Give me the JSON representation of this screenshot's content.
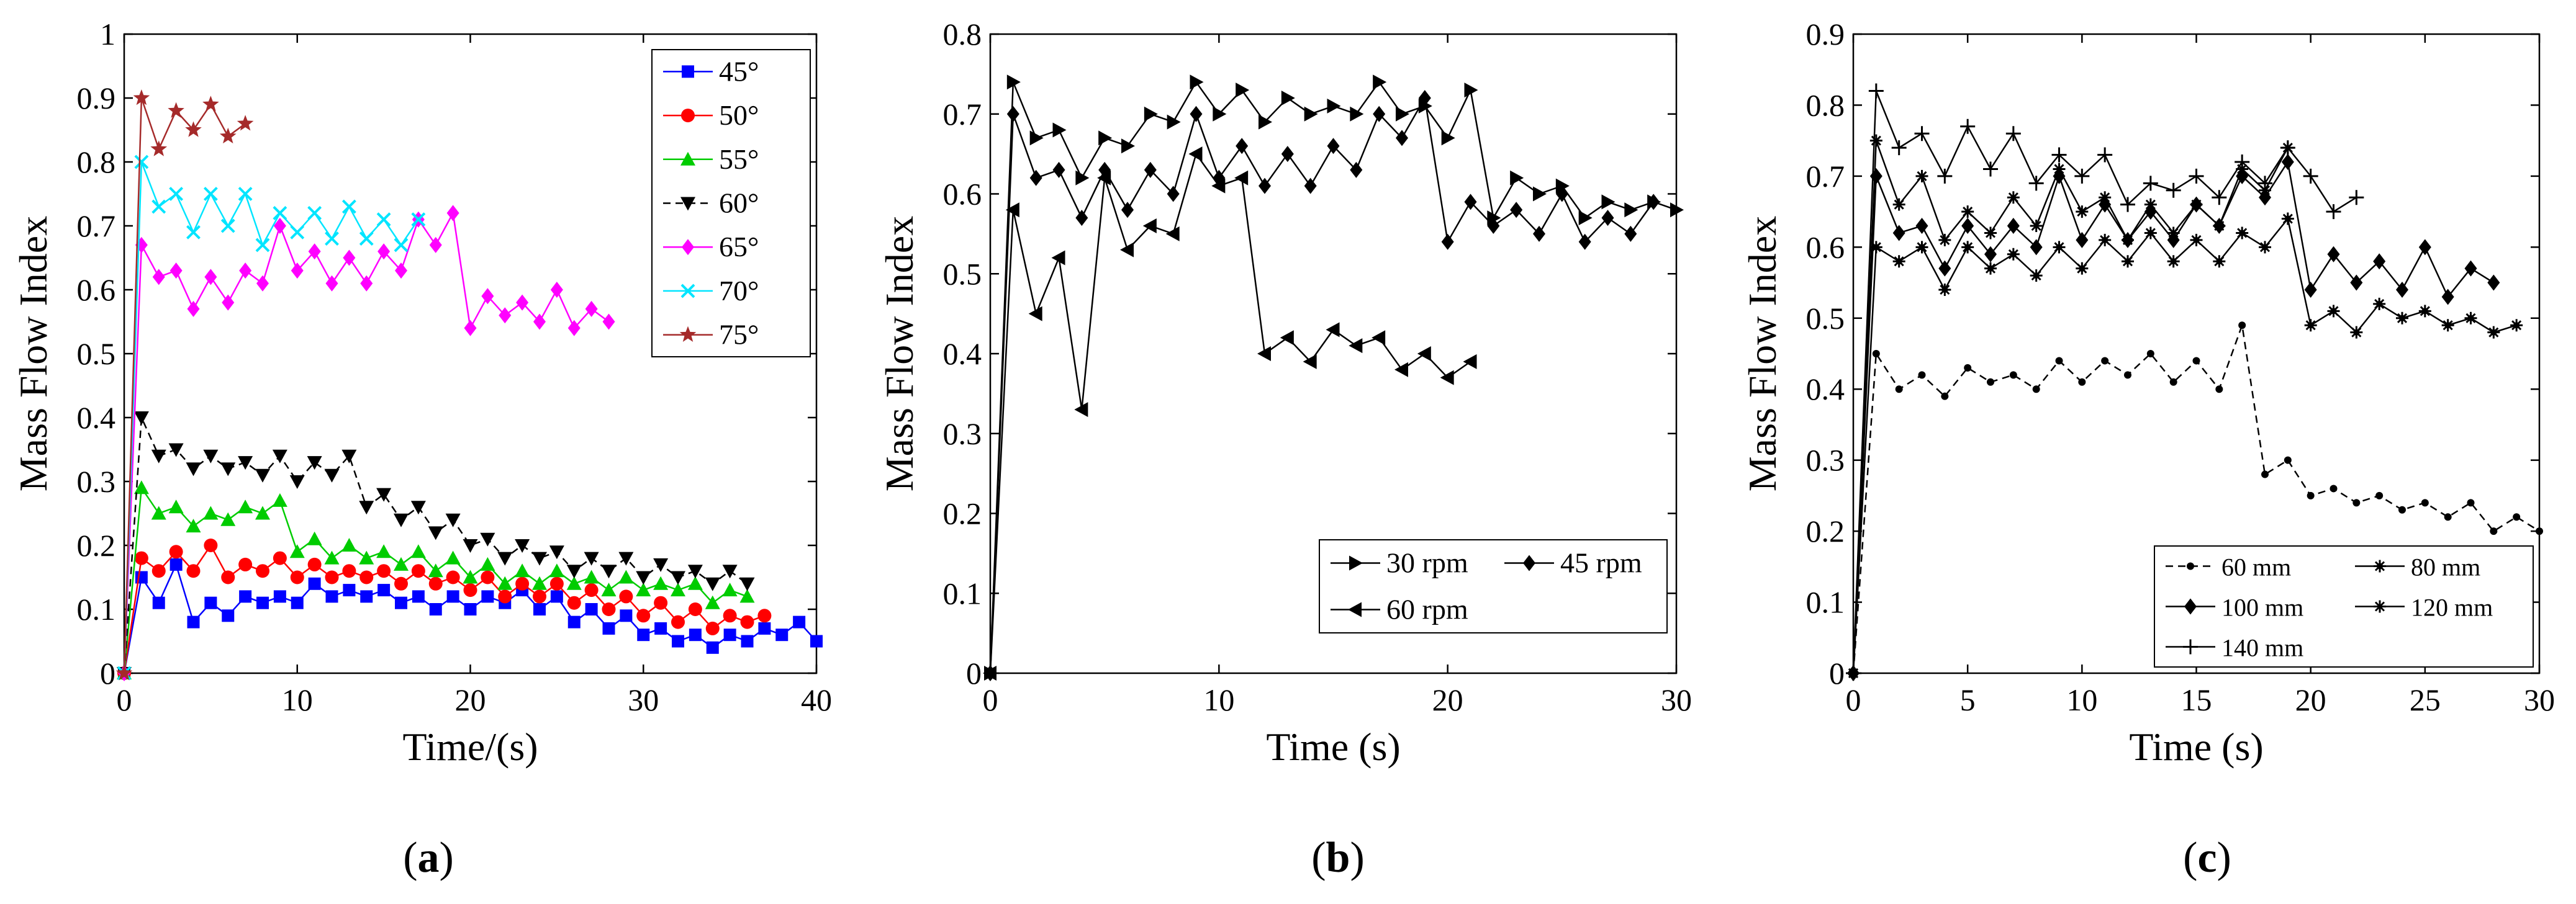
{
  "chart_data": [
    {
      "type": "line",
      "panel_label": "a",
      "xlabel": "Time/(s)",
      "ylabel": "Mass Flow Index",
      "xlim": [
        0,
        40
      ],
      "ylim": [
        0,
        1
      ],
      "xticks": [
        0,
        10,
        20,
        30,
        40
      ],
      "yticks": [
        0,
        0.1,
        0.2,
        0.3,
        0.4,
        0.5,
        0.6,
        0.7,
        0.8,
        0.9,
        1
      ],
      "ytick_labels": [
        "0",
        "0.1",
        "0.2",
        "0.3",
        "0.4",
        "0.5",
        "0.6",
        "0.7",
        "0.8",
        "0.9",
        "1"
      ],
      "legend_position": "top-right",
      "series": [
        {
          "name": "45°",
          "color": "#0000ff",
          "marker": "square",
          "dash": "solid",
          "x": [
            0,
            1,
            2,
            3,
            4,
            5,
            6,
            7,
            8,
            9,
            10,
            11,
            12,
            13,
            14,
            15,
            16,
            17,
            18,
            19,
            20,
            21,
            22,
            23,
            24,
            25,
            26,
            27,
            28,
            29,
            30,
            31,
            32,
            33,
            34,
            35,
            36,
            37,
            38,
            39,
            40
          ],
          "values": [
            0,
            0.15,
            0.11,
            0.17,
            0.08,
            0.11,
            0.09,
            0.12,
            0.11,
            0.12,
            0.11,
            0.14,
            0.12,
            0.13,
            0.12,
            0.13,
            0.11,
            0.12,
            0.1,
            0.12,
            0.1,
            0.12,
            0.11,
            0.13,
            0.1,
            0.12,
            0.08,
            0.1,
            0.07,
            0.09,
            0.06,
            0.07,
            0.05,
            0.06,
            0.04,
            0.06,
            0.05,
            0.07,
            0.06,
            0.08,
            0.05
          ]
        },
        {
          "name": "50°",
          "color": "#ff0000",
          "marker": "circle",
          "dash": "solid",
          "x": [
            0,
            1,
            2,
            3,
            4,
            5,
            6,
            7,
            8,
            9,
            10,
            11,
            12,
            13,
            14,
            15,
            16,
            17,
            18,
            19,
            20,
            21,
            22,
            23,
            24,
            25,
            26,
            27,
            28,
            29,
            30,
            31,
            32,
            33,
            34,
            35,
            36,
            37
          ],
          "values": [
            0,
            0.18,
            0.16,
            0.19,
            0.16,
            0.2,
            0.15,
            0.17,
            0.16,
            0.18,
            0.15,
            0.17,
            0.15,
            0.16,
            0.15,
            0.16,
            0.14,
            0.16,
            0.14,
            0.15,
            0.13,
            0.15,
            0.12,
            0.14,
            0.12,
            0.14,
            0.11,
            0.13,
            0.1,
            0.12,
            0.09,
            0.11,
            0.08,
            0.1,
            0.07,
            0.09,
            0.08,
            0.09
          ]
        },
        {
          "name": "55°",
          "color": "#00cc00",
          "marker": "triangle",
          "dash": "solid",
          "x": [
            0,
            1,
            2,
            3,
            4,
            5,
            6,
            7,
            8,
            9,
            10,
            11,
            12,
            13,
            14,
            15,
            16,
            17,
            18,
            19,
            20,
            21,
            22,
            23,
            24,
            25,
            26,
            27,
            28,
            29,
            30,
            31,
            32,
            33,
            34,
            35,
            36
          ],
          "values": [
            0,
            0.29,
            0.25,
            0.26,
            0.23,
            0.25,
            0.24,
            0.26,
            0.25,
            0.27,
            0.19,
            0.21,
            0.18,
            0.2,
            0.18,
            0.19,
            0.17,
            0.19,
            0.16,
            0.18,
            0.15,
            0.17,
            0.14,
            0.16,
            0.14,
            0.16,
            0.14,
            0.15,
            0.13,
            0.15,
            0.13,
            0.14,
            0.13,
            0.14,
            0.11,
            0.13,
            0.12
          ]
        },
        {
          "name": "60°",
          "color": "#000000",
          "marker": "triangle-down",
          "dash": "dashed",
          "x": [
            0,
            1,
            2,
            3,
            4,
            5,
            6,
            7,
            8,
            9,
            10,
            11,
            12,
            13,
            14,
            15,
            16,
            17,
            18,
            19,
            20,
            21,
            22,
            23,
            24,
            25,
            26,
            27,
            28,
            29,
            30,
            31,
            32,
            33,
            34,
            35,
            36
          ],
          "values": [
            0,
            0.4,
            0.34,
            0.35,
            0.32,
            0.34,
            0.32,
            0.33,
            0.31,
            0.34,
            0.3,
            0.33,
            0.31,
            0.34,
            0.26,
            0.28,
            0.24,
            0.26,
            0.22,
            0.24,
            0.2,
            0.21,
            0.18,
            0.2,
            0.18,
            0.19,
            0.16,
            0.18,
            0.16,
            0.18,
            0.15,
            0.17,
            0.15,
            0.16,
            0.14,
            0.16,
            0.14
          ]
        },
        {
          "name": "65°",
          "color": "#ff00ff",
          "marker": "diamond",
          "dash": "solid",
          "x": [
            0,
            1,
            2,
            3,
            4,
            5,
            6,
            7,
            8,
            9,
            10,
            11,
            12,
            13,
            14,
            15,
            16,
            17,
            18,
            19,
            20,
            21,
            22,
            23,
            24,
            25,
            26,
            27,
            28
          ],
          "values": [
            0,
            0.67,
            0.62,
            0.63,
            0.57,
            0.62,
            0.58,
            0.63,
            0.61,
            0.7,
            0.63,
            0.66,
            0.61,
            0.65,
            0.61,
            0.66,
            0.63,
            0.71,
            0.67,
            0.72,
            0.54,
            0.59,
            0.56,
            0.58,
            0.55,
            0.6,
            0.54,
            0.57,
            0.55
          ]
        },
        {
          "name": "70°",
          "color": "#00e5ff",
          "marker": "x",
          "dash": "solid",
          "x": [
            0,
            1,
            2,
            3,
            4,
            5,
            6,
            7,
            8,
            9,
            10,
            11,
            12,
            13,
            14,
            15,
            16,
            17
          ],
          "values": [
            0,
            0.8,
            0.73,
            0.75,
            0.69,
            0.75,
            0.7,
            0.75,
            0.67,
            0.72,
            0.69,
            0.72,
            0.68,
            0.73,
            0.68,
            0.71,
            0.67,
            0.71
          ]
        },
        {
          "name": "75°",
          "color": "#a52a2a",
          "marker": "star",
          "dash": "solid",
          "x": [
            0,
            1,
            2,
            3,
            4,
            5,
            6,
            7
          ],
          "values": [
            0,
            0.9,
            0.82,
            0.88,
            0.85,
            0.89,
            0.84,
            0.86
          ]
        }
      ]
    },
    {
      "type": "line",
      "panel_label": "b",
      "xlabel": "Time (s)",
      "ylabel": "Mass Flow Index",
      "xlim": [
        0,
        30
      ],
      "ylim": [
        0,
        0.8
      ],
      "xticks": [
        0,
        10,
        20,
        30
      ],
      "yticks": [
        0,
        0.1,
        0.2,
        0.3,
        0.4,
        0.5,
        0.6,
        0.7,
        0.8
      ],
      "ytick_labels": [
        "0",
        "0.1",
        "0.2",
        "0.3",
        "0.4",
        "0.5",
        "0.6",
        "0.7",
        "0.8"
      ],
      "legend_position": "bottom-right",
      "series": [
        {
          "name": "30 rpm",
          "color": "#000000",
          "marker": "triangle-right",
          "dash": "solid",
          "x": [
            0,
            1,
            2,
            3,
            4,
            5,
            6,
            7,
            8,
            9,
            10,
            11,
            12,
            13,
            14,
            15,
            16,
            17,
            18,
            19,
            20,
            21,
            22,
            23,
            24,
            25,
            26,
            27,
            28,
            29,
            30
          ],
          "values": [
            0,
            0.74,
            0.67,
            0.68,
            0.62,
            0.67,
            0.66,
            0.7,
            0.69,
            0.74,
            0.7,
            0.73,
            0.69,
            0.72,
            0.7,
            0.71,
            0.7,
            0.74,
            0.7,
            0.71,
            0.67,
            0.73,
            0.57,
            0.62,
            0.6,
            0.61,
            0.57,
            0.59,
            0.58,
            0.59,
            0.58
          ]
        },
        {
          "name": "45 rpm",
          "color": "#000000",
          "marker": "diamond",
          "dash": "solid",
          "x": [
            0,
            1,
            2,
            3,
            4,
            5,
            6,
            7,
            8,
            9,
            10,
            11,
            12,
            13,
            14,
            15,
            16,
            17,
            18,
            19,
            20,
            21,
            22,
            23,
            24,
            25,
            26,
            27,
            28,
            29
          ],
          "values": [
            0,
            0.7,
            0.62,
            0.63,
            0.57,
            0.63,
            0.58,
            0.63,
            0.6,
            0.7,
            0.62,
            0.66,
            0.61,
            0.65,
            0.61,
            0.66,
            0.63,
            0.7,
            0.67,
            0.72,
            0.54,
            0.59,
            0.56,
            0.58,
            0.55,
            0.6,
            0.54,
            0.57,
            0.55,
            0.59
          ]
        },
        {
          "name": "60 rpm",
          "color": "#000000",
          "marker": "triangle-left",
          "dash": "solid",
          "x": [
            0,
            1,
            2,
            3,
            4,
            5,
            6,
            7,
            8,
            9,
            10,
            11,
            12,
            13,
            14,
            15,
            16,
            17,
            18,
            19,
            20,
            21
          ],
          "values": [
            0,
            0.58,
            0.45,
            0.52,
            0.33,
            0.62,
            0.53,
            0.56,
            0.55,
            0.65,
            0.61,
            0.62,
            0.4,
            0.42,
            0.39,
            0.43,
            0.41,
            0.42,
            0.38,
            0.4,
            0.37,
            0.39
          ]
        }
      ]
    },
    {
      "type": "line",
      "panel_label": "c",
      "xlabel": "Time (s)",
      "ylabel": "Mass Flow Index",
      "xlim": [
        0,
        30
      ],
      "ylim": [
        0,
        0.9
      ],
      "xticks": [
        0,
        5,
        10,
        15,
        20,
        25,
        30
      ],
      "yticks": [
        0,
        0.1,
        0.2,
        0.3,
        0.4,
        0.5,
        0.6,
        0.7,
        0.8,
        0.9
      ],
      "ytick_labels": [
        "0",
        "0.1",
        "0.2",
        "0.3",
        "0.4",
        "0.5",
        "0.6",
        "0.7",
        "0.8",
        "0.9"
      ],
      "legend_position": "bottom-right",
      "series": [
        {
          "name": "60 mm",
          "color": "#000000",
          "marker": "dot",
          "dash": "dashed",
          "x": [
            0,
            1,
            2,
            3,
            4,
            5,
            6,
            7,
            8,
            9,
            10,
            11,
            12,
            13,
            14,
            15,
            16,
            17,
            18,
            19,
            20,
            21,
            22,
            23,
            24,
            25,
            26,
            27,
            28,
            29,
            30
          ],
          "values": [
            0,
            0.45,
            0.4,
            0.42,
            0.39,
            0.43,
            0.41,
            0.42,
            0.4,
            0.44,
            0.41,
            0.44,
            0.42,
            0.45,
            0.41,
            0.44,
            0.4,
            0.49,
            0.28,
            0.3,
            0.25,
            0.26,
            0.24,
            0.25,
            0.23,
            0.24,
            0.22,
            0.24,
            0.2,
            0.22,
            0.2
          ]
        },
        {
          "name": "80 mm",
          "color": "#000000",
          "marker": "asterisk-dot",
          "dash": "solid",
          "x": [
            0,
            1,
            2,
            3,
            4,
            5,
            6,
            7,
            8,
            9,
            10,
            11,
            12,
            13,
            14,
            15,
            16,
            17,
            18,
            19,
            20,
            21,
            22,
            23,
            24,
            25,
            26,
            27,
            28,
            29
          ],
          "values": [
            0,
            0.6,
            0.58,
            0.6,
            0.54,
            0.6,
            0.57,
            0.59,
            0.56,
            0.6,
            0.57,
            0.61,
            0.58,
            0.62,
            0.58,
            0.61,
            0.58,
            0.62,
            0.6,
            0.64,
            0.49,
            0.51,
            0.48,
            0.52,
            0.5,
            0.51,
            0.49,
            0.5,
            0.48,
            0.49
          ]
        },
        {
          "name": "100 mm",
          "color": "#000000",
          "marker": "diamond",
          "dash": "solid",
          "x": [
            0,
            1,
            2,
            3,
            4,
            5,
            6,
            7,
            8,
            9,
            10,
            11,
            12,
            13,
            14,
            15,
            16,
            17,
            18,
            19,
            20,
            21,
            22,
            23,
            24,
            25,
            26,
            27,
            28
          ],
          "values": [
            0,
            0.7,
            0.62,
            0.63,
            0.57,
            0.63,
            0.59,
            0.63,
            0.6,
            0.7,
            0.61,
            0.66,
            0.61,
            0.65,
            0.61,
            0.66,
            0.63,
            0.7,
            0.67,
            0.72,
            0.54,
            0.59,
            0.55,
            0.58,
            0.54,
            0.6,
            0.53,
            0.57,
            0.55
          ]
        },
        {
          "name": "120 mm",
          "color": "#000000",
          "marker": "asterisk",
          "dash": "solid",
          "x": [
            0,
            1,
            2,
            3,
            4,
            5,
            6,
            7,
            8,
            9,
            10,
            11,
            12,
            13,
            14,
            15,
            16,
            17,
            18,
            19
          ],
          "values": [
            0,
            0.75,
            0.66,
            0.7,
            0.61,
            0.65,
            0.62,
            0.67,
            0.63,
            0.71,
            0.65,
            0.67,
            0.61,
            0.66,
            0.62,
            0.66,
            0.63,
            0.71,
            0.68,
            0.74
          ]
        },
        {
          "name": "140 mm",
          "color": "#000000",
          "marker": "plus",
          "dash": "solid",
          "x": [
            0,
            1,
            2,
            3,
            4,
            5,
            6,
            7,
            8,
            9,
            10,
            11,
            12,
            13,
            14,
            15,
            16,
            17,
            18,
            19,
            20,
            21,
            22
          ],
          "values": [
            0,
            0.82,
            0.74,
            0.76,
            0.7,
            0.77,
            0.71,
            0.76,
            0.69,
            0.73,
            0.7,
            0.73,
            0.66,
            0.69,
            0.68,
            0.7,
            0.67,
            0.72,
            0.69,
            0.74,
            0.7,
            0.65,
            0.67
          ]
        }
      ]
    }
  ]
}
